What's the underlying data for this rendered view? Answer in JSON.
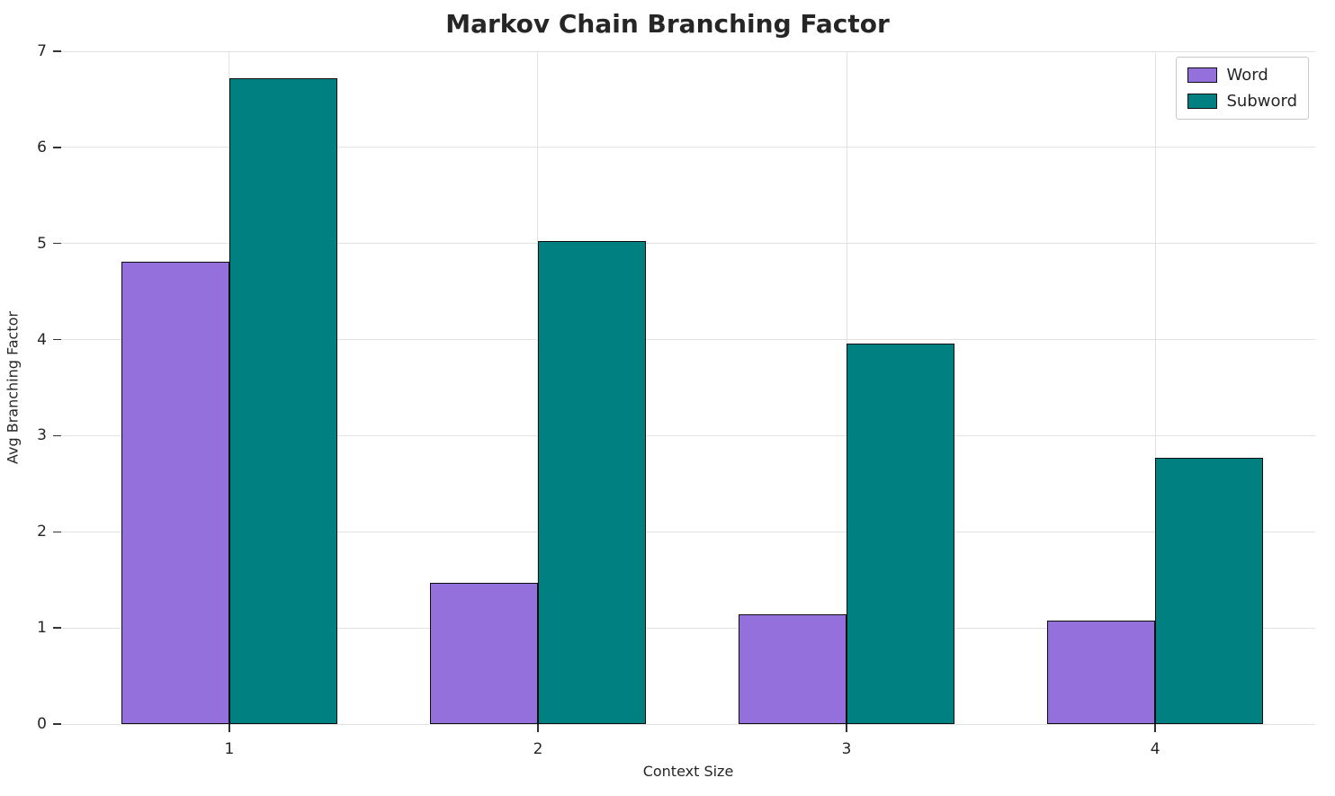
{
  "title": "Markov Chain Branching Factor",
  "chart_data": {
    "type": "bar",
    "title": "Markov Chain Branching Factor",
    "xlabel": "Context Size",
    "ylabel": "Avg Branching Factor",
    "categories": [
      "1",
      "2",
      "3",
      "4"
    ],
    "series": [
      {
        "name": "Word",
        "color": "#9370DB",
        "values": [
          4.81,
          1.47,
          1.14,
          1.08
        ]
      },
      {
        "name": "Subword",
        "color": "#008080",
        "values": [
          6.72,
          5.03,
          3.96,
          2.77
        ]
      }
    ],
    "ylim": [
      0,
      7
    ],
    "yticks": [
      0,
      1,
      2,
      3,
      4,
      5,
      6,
      7
    ],
    "grid": true,
    "bar_edge_color": "#0d0d0d",
    "legend_position": "upper right",
    "legend_entries": [
      "Word",
      "Subword"
    ]
  }
}
